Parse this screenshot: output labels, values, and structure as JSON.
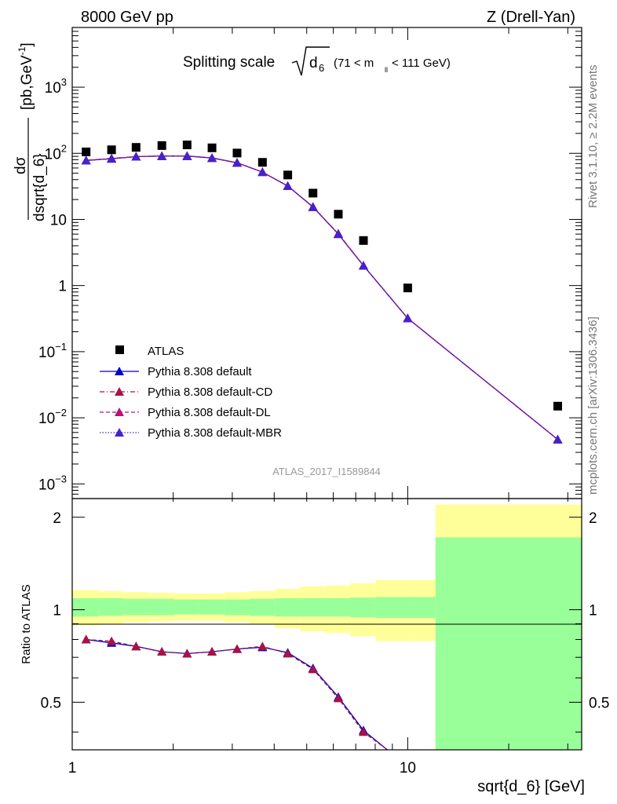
{
  "header": {
    "left": "8000 GeV pp",
    "right": "Z (Drell-Yan)"
  },
  "side": {
    "rivet": "Rivet 3.1.10, ≥ 2.2M events",
    "mcplots": "mcplots.cern.ch [arXiv:1306.3436]"
  },
  "main": {
    "title_text": "Splitting scale",
    "title_symbol": "d",
    "title_subscript": "6",
    "title_cut_open": "(71 < m",
    "title_cut_sub": "ll",
    "title_cut_close": " < 111 GeV)",
    "ylabel_top": "dσ",
    "ylabel_bottom": "dsqrt{d_6}",
    "ylabel_units": "[pb,GeV",
    "ylabel_units_exp": "-1",
    "ylabel_units_close": "]",
    "analysis_id": "ATLAS_2017_I1589844"
  },
  "ratio": {
    "ylabel": "Ratio to ATLAS",
    "xlabel": "sqrt{d_6} [GeV]"
  },
  "legend": {
    "atlas": "ATLAS",
    "default": "Pythia 8.308 default",
    "cd": "Pythia 8.308 default-CD",
    "dl": "Pythia 8.308 default-DL",
    "mbr": "Pythia 8.308 default-MBR"
  },
  "chart_data": {
    "type": "scatter",
    "x_scale": "log",
    "y_scale": "log",
    "xlim": [
      1,
      33
    ],
    "main_ylim": [
      0.0006,
      8000
    ],
    "ratio_ylim": [
      0.35,
      2.3
    ],
    "x_ticks": [
      "1",
      "10"
    ],
    "main_y_ticks": [
      "10^-3",
      "10^-2",
      "10^-1",
      "1",
      "10",
      "10^2",
      "10^3"
    ],
    "ratio_y_ticks": [
      "0.5",
      "1",
      "2"
    ],
    "x": [
      1.1,
      1.31,
      1.55,
      1.85,
      2.2,
      2.61,
      3.1,
      3.69,
      4.39,
      5.22,
      6.21,
      7.38,
      10.0,
      28.0
    ],
    "series": [
      {
        "name": "ATLAS",
        "marker": "square",
        "color": "#000000",
        "values": [
          105,
          113,
          123,
          131,
          134,
          121,
          101,
          73,
          47,
          25,
          12,
          4.8,
          0.92,
          0.015
        ]
      },
      {
        "name": "Pythia 8.308 default",
        "marker": "triangle",
        "line": "solid",
        "color": "#0000cc",
        "values": [
          78,
          83,
          89,
          91,
          91,
          85,
          72,
          52,
          32,
          15.5,
          6.0,
          2.0,
          0.32,
          0.0047
        ]
      },
      {
        "name": "Pythia 8.308 default-CD",
        "marker": "triangle",
        "line": "dashdot",
        "color": "#aa1144",
        "values": [
          78,
          84,
          89,
          91,
          91,
          85,
          72,
          52,
          32,
          15.3,
          6.1,
          2.0,
          0.32,
          0.0047
        ]
      },
      {
        "name": "Pythia 8.308 default-DL",
        "marker": "triangle",
        "line": "dashed",
        "color": "#bb1177",
        "values": [
          78,
          83,
          89,
          91,
          91,
          85,
          72,
          52,
          32,
          15.4,
          6.0,
          2.0,
          0.32,
          0.0047
        ]
      },
      {
        "name": "Pythia 8.308 default-MBR",
        "marker": "triangle",
        "line": "dotted",
        "color": "#4422cc",
        "values": [
          78,
          83,
          89,
          91,
          91,
          85,
          72,
          52,
          32,
          15.5,
          6.0,
          2.0,
          0.32,
          0.0047
        ]
      }
    ],
    "ratio_series": [
      {
        "name": "Pythia 8.308 default",
        "values": [
          0.8,
          0.78,
          0.76,
          0.73,
          0.72,
          0.73,
          0.745,
          0.755,
          0.725,
          0.645,
          0.52,
          0.405,
          0.35
        ]
      },
      {
        "name": "Pythia 8.308 default-CD",
        "values": [
          0.8,
          0.79,
          0.76,
          0.73,
          0.72,
          0.73,
          0.745,
          0.76,
          0.72,
          0.64,
          0.515,
          0.4,
          0.35
        ]
      }
    ],
    "ratio_x": [
      1.1,
      1.31,
      1.55,
      1.85,
      2.2,
      2.61,
      3.1,
      3.69,
      4.39,
      5.22,
      6.21,
      7.38,
      8.7
    ],
    "bin_edges": [
      1.0,
      1.2,
      1.42,
      1.69,
      2.01,
      2.39,
      2.84,
      3.38,
      4.02,
      4.78,
      5.68,
      6.75,
      8.03,
      10.4,
      12.1,
      33
    ],
    "band_yellow": [
      [
        0.89,
        1.16
      ],
      [
        0.9,
        1.15
      ],
      [
        0.91,
        1.14
      ],
      [
        0.915,
        1.135
      ],
      [
        0.92,
        1.13
      ],
      [
        0.92,
        1.13
      ],
      [
        0.91,
        1.14
      ],
      [
        0.9,
        1.15
      ],
      [
        0.87,
        1.17
      ],
      [
        0.85,
        1.19
      ],
      [
        0.84,
        1.2
      ],
      [
        0.82,
        1.22
      ],
      [
        0.79,
        1.25
      ],
      [
        0.79,
        1.25
      ],
      [
        0.3,
        2.2
      ]
    ],
    "band_green": [
      [
        0.95,
        1.09
      ],
      [
        0.955,
        1.09
      ],
      [
        0.96,
        1.085
      ],
      [
        0.96,
        1.085
      ],
      [
        0.965,
        1.08
      ],
      [
        0.965,
        1.08
      ],
      [
        0.96,
        1.08
      ],
      [
        0.955,
        1.085
      ],
      [
        0.95,
        1.09
      ],
      [
        0.95,
        1.09
      ],
      [
        0.95,
        1.09
      ],
      [
        0.945,
        1.095
      ],
      [
        0.94,
        1.1
      ],
      [
        0.94,
        1.1
      ],
      [
        0.3,
        1.72
      ]
    ]
  }
}
